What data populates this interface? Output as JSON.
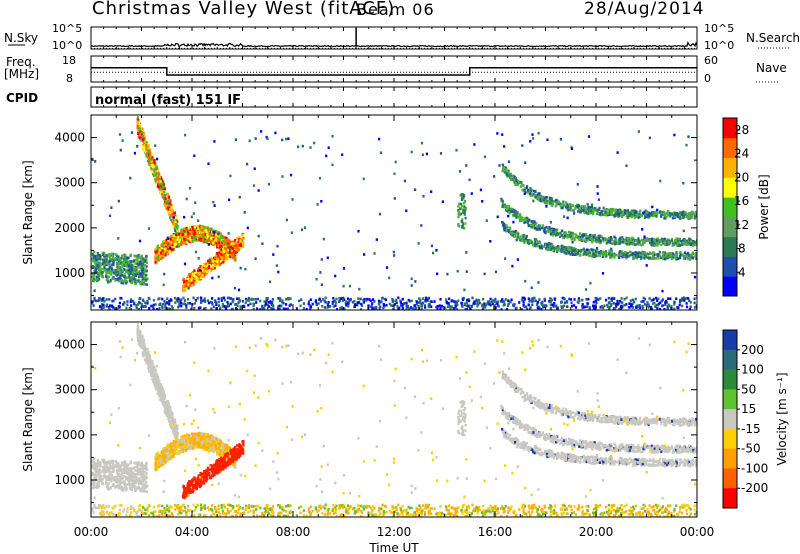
{
  "header": {
    "title": "Christmas Valley West (fitACF)",
    "beam": "Beam 06",
    "date": "28/Aug/2014"
  },
  "labels": {
    "nsky": "N.Sky",
    "freq_line1": "Freq.",
    "freq_line2": "[MHz]",
    "cpid": "CPID",
    "nsearch": "N.Search",
    "nave": "Nave",
    "cpid_value": "normal (fast) 151 IF",
    "nsky_ticks": [
      "10^5",
      "10^0"
    ],
    "nsearch_ticks": [
      "10^5",
      "10^0"
    ],
    "freq_ticks": [
      "18",
      "8"
    ],
    "nave_ticks": [
      "60",
      "0"
    ],
    "x_axis_label": "Time UT",
    "y_axis_label": "Slant Range [km]",
    "power_label": "Power [dB]",
    "velocity_label": "Velocity [m s⁻¹]"
  },
  "colors": {
    "power_scale": [
      "#0000ff",
      "#1f4faa",
      "#2a7a55",
      "#5fa060",
      "#40c020",
      "#ffff00",
      "#ffb300",
      "#ff6a00",
      "#ff0000"
    ],
    "velocity_scale": [
      "#1a3caa",
      "#2a6a7a",
      "#2a8a3a",
      "#5fc030",
      "#c8c8c0",
      "#ffd000",
      "#ffa000",
      "#ff6000",
      "#ff0000"
    ],
    "ground_scatter": "#c8c8c0"
  },
  "chart_data": [
    {
      "type": "line",
      "name": "nsky-nsearch-panel",
      "x_range": [
        0,
        24
      ],
      "y_range": [
        0,
        5
      ],
      "x_unit": "hours UT",
      "y_scale": "log",
      "series": [
        {
          "name": "N.Sky",
          "x": [
            0,
            2.5,
            3,
            6,
            10,
            10.5,
            10.6,
            15,
            20,
            23.8,
            24
          ],
          "y": [
            0.2,
            0.3,
            0.8,
            0.4,
            0.3,
            5,
            0.3,
            0.3,
            0.3,
            1.2,
            0.3
          ]
        },
        {
          "name": "N.Search",
          "x": [
            0,
            24
          ],
          "y": [
            0.15,
            0.15
          ]
        }
      ]
    },
    {
      "type": "line",
      "name": "freq-nave-panel",
      "x_range": [
        0,
        24
      ],
      "freq_range": [
        8,
        18
      ],
      "nave_range": [
        0,
        60
      ],
      "series": [
        {
          "name": "Freq.",
          "x": [
            0,
            3,
            3,
            15,
            15,
            24
          ],
          "y": [
            13.5,
            13.5,
            10.5,
            10.5,
            13.5,
            13.5
          ]
        },
        {
          "name": "Nave",
          "x": [
            0,
            3,
            3,
            15,
            15,
            24
          ],
          "y": [
            22,
            22,
            22,
            22,
            22,
            22
          ]
        }
      ]
    },
    {
      "type": "heatmap",
      "name": "power-panel",
      "x_range": [
        0,
        24
      ],
      "ylim": [
        180,
        4500
      ],
      "xticks": [
        "00:00",
        "04:00",
        "08:00",
        "12:00",
        "16:00",
        "20:00",
        "00:00"
      ],
      "yticks": [
        1000,
        2000,
        3000,
        4000
      ],
      "colorbar_ticks": [
        4,
        8,
        12,
        16,
        20,
        24,
        28
      ],
      "colorbar_range": [
        0,
        30
      ],
      "ylabel": "Slant Range [km]",
      "clabel": "Power [dB]"
    },
    {
      "type": "heatmap",
      "name": "velocity-panel",
      "x_range": [
        0,
        24
      ],
      "ylim": [
        180,
        4500
      ],
      "xticks": [
        "00:00",
        "04:00",
        "08:00",
        "12:00",
        "16:00",
        "20:00",
        "00:00"
      ],
      "yticks": [
        1000,
        2000,
        3000,
        4000
      ],
      "colorbar_ticks": [
        -200,
        -100,
        -50,
        -15,
        15,
        50,
        100,
        200
      ],
      "ylabel": "Slant Range [km]",
      "xlabel": "Time UT",
      "clabel": "Velocity [m s⁻¹]"
    }
  ]
}
